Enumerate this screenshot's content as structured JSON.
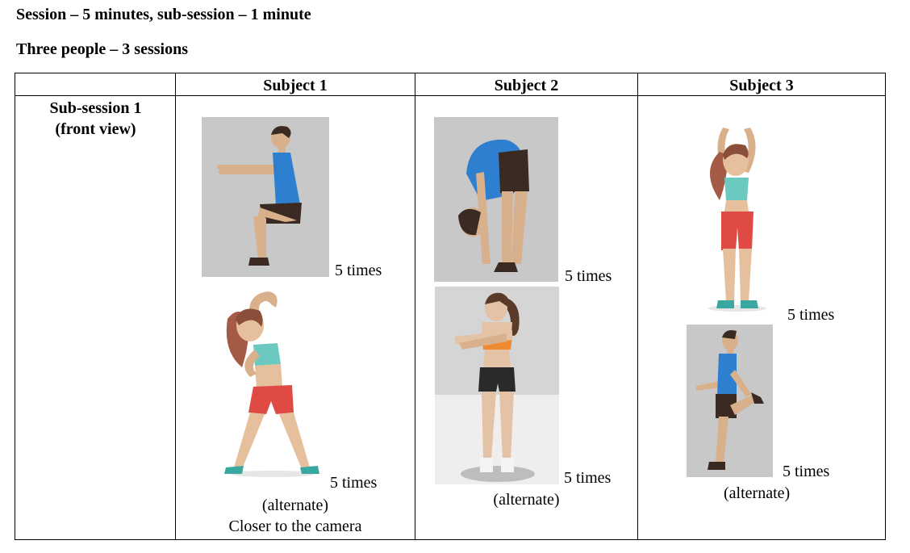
{
  "heading": {
    "line1": "Session – 5 minutes, sub-session – 1 minute",
    "line2": "Three people – 3 sessions"
  },
  "table": {
    "headers": [
      "",
      "Subject 1",
      "Subject 2",
      "Subject 3"
    ],
    "row_label_line1": "Sub-session 1",
    "row_label_line2": "(front view)",
    "subject1": {
      "ex1_reps": "5 times",
      "ex2_reps": "5 times",
      "ex2_note": "(alternate)",
      "ex2_note2": "Closer to the camera"
    },
    "subject2": {
      "ex1_reps": "5 times",
      "ex2_reps": "5 times",
      "ex2_note": "(alternate)"
    },
    "subject3": {
      "ex1_reps": "5 times",
      "ex2_reps": "5 times",
      "ex2_note": "(alternate)"
    }
  },
  "figures": {
    "s1_ex1": "man-squat-illustration",
    "s1_ex2": "woman-side-bend-illustration",
    "s2_ex1": "man-forward-fold-illustration",
    "s2_ex2": "woman-arm-stretch-illustration",
    "s3_ex1": "woman-overhead-arms-illustration",
    "s3_ex2": "man-quad-stretch-illustration"
  },
  "colors": {
    "figure_bg": "#c8c8c8",
    "skin": "#d9b08c",
    "blue_top": "#2f7fd0",
    "shorts_dark": "#3a2a22",
    "red_shorts": "#e04a45",
    "teal_top": "#6cc9c0",
    "hair_brown": "#8a4e3a"
  }
}
